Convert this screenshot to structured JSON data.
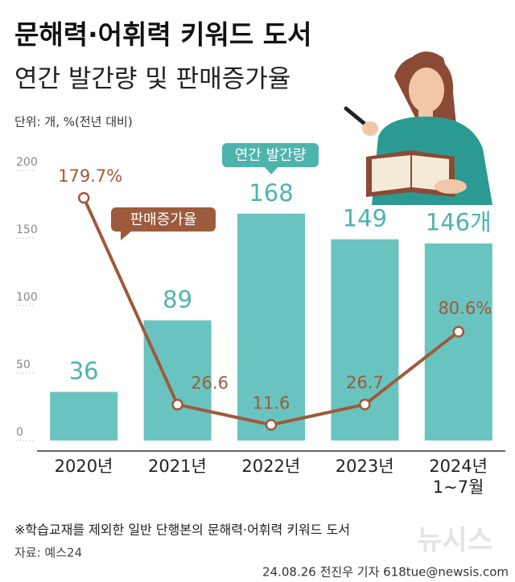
{
  "title": "문해력·어휘력 키워드 도서",
  "subtitle": "연간 발간량 및 판매증가율",
  "unit": "단위: 개, %(전년 대비)",
  "footnote": "※학습교재를 제외한 일반 단행본의 문해력·어휘력 키워드 도서",
  "source": "자료: 예스24",
  "credit": "24.08.26 전진우 기자 618tue@newsis.com",
  "watermark": "뉴시스",
  "chart_data": {
    "type": "bar",
    "categories": [
      "2020년",
      "2021년",
      "2022년",
      "2023년",
      "2024년\n1~7월"
    ],
    "series": [
      {
        "name": "연간 발간량",
        "type": "bar",
        "color": "#69c4bf",
        "values": [
          36,
          89,
          168,
          149,
          146
        ],
        "value_labels": [
          "36",
          "89",
          "168",
          "149",
          "146개"
        ]
      },
      {
        "name": "판매증가율",
        "type": "line",
        "color": "#9e5a3c",
        "values": [
          179.7,
          26.6,
          11.6,
          26.7,
          80.6
        ],
        "value_labels": [
          "179.7%",
          "26.6",
          "11.6",
          "26.7",
          "80.6%"
        ]
      }
    ],
    "ylim": [
      0,
      200
    ],
    "yticks": [
      0,
      50,
      100,
      150,
      200
    ],
    "grid": false
  }
}
